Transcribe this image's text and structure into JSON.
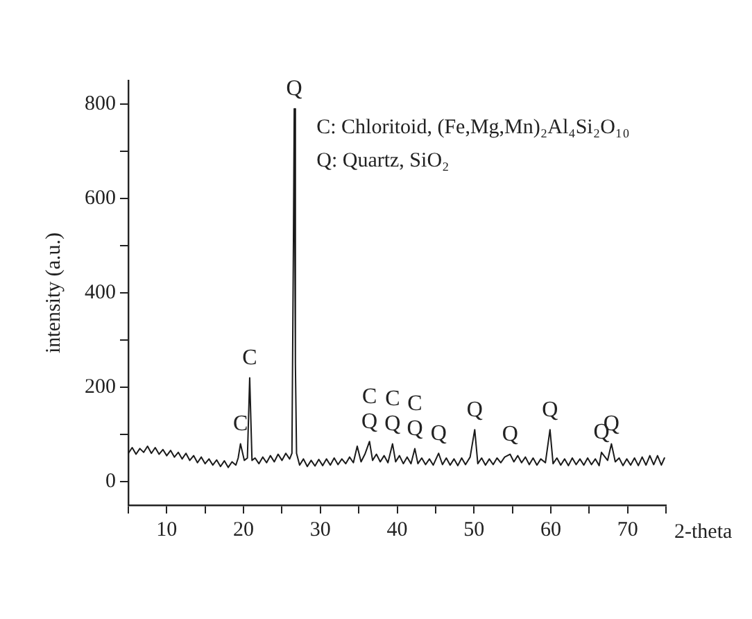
{
  "chart_data": {
    "type": "line",
    "xlabel": "2-theta",
    "ylabel": "intensity (a.u.)",
    "xlim": [
      5,
      75
    ],
    "ylim": [
      -50,
      850
    ],
    "xticks": [
      {
        "value": 5,
        "label": null
      },
      10,
      {
        "value": 15,
        "label": null
      },
      20,
      {
        "value": 25,
        "label": null
      },
      30,
      {
        "value": 35,
        "label": null
      },
      40,
      {
        "value": 45,
        "label": null
      },
      50,
      {
        "value": 55,
        "label": null
      },
      60,
      {
        "value": 65,
        "label": null
      },
      70,
      {
        "value": 75,
        "label": null
      }
    ],
    "yticks": [
      0,
      {
        "value": 100,
        "label": null
      },
      200,
      {
        "value": 300,
        "label": null
      },
      400,
      {
        "value": 500,
        "label": null
      },
      600,
      {
        "value": 700,
        "label": null
      },
      800
    ],
    "grid": false,
    "legend": false,
    "marker": "none",
    "line_style": "solid",
    "series": [
      {
        "color": "#1a1a1a",
        "x": [
          5,
          5.5,
          6,
          6.5,
          7,
          7.5,
          8,
          8.5,
          9,
          9.5,
          10,
          10.5,
          11,
          11.5,
          12,
          12.5,
          13,
          13.5,
          14,
          14.5,
          15,
          15.5,
          16,
          16.5,
          17,
          17.5,
          18,
          18.5,
          19,
          19.3,
          19.6,
          20.1,
          20.5,
          20.8,
          21.1,
          21.5,
          22,
          22.5,
          23,
          23.5,
          24,
          24.5,
          25,
          25.5,
          26,
          26.3,
          26.5,
          26.6,
          26.75,
          26.9,
          27.3,
          27.8,
          28.3,
          28.8,
          29.3,
          29.8,
          30.3,
          30.8,
          31.3,
          31.8,
          32.3,
          32.8,
          33.3,
          33.8,
          34.3,
          34.8,
          35.3,
          35.8,
          36.4,
          36.8,
          37.3,
          37.8,
          38.3,
          38.8,
          39.4,
          39.8,
          40.3,
          40.8,
          41.3,
          41.8,
          42.3,
          42.7,
          43.2,
          43.7,
          44.2,
          44.7,
          45.4,
          45.9,
          46.4,
          46.9,
          47.4,
          47.9,
          48.4,
          48.9,
          49.5,
          50.1,
          50.5,
          51,
          51.5,
          52,
          52.5,
          53,
          53.5,
          54,
          54.7,
          55.2,
          55.7,
          56.2,
          56.7,
          57.2,
          57.7,
          58.2,
          58.7,
          59.3,
          59.9,
          60.3,
          60.8,
          61.3,
          61.8,
          62.3,
          62.8,
          63.3,
          63.8,
          64.3,
          64.8,
          65.3,
          65.8,
          66.3,
          66.6,
          67.4,
          67.9,
          68.4,
          68.9,
          69.4,
          69.9,
          70.4,
          70.9,
          71.4,
          71.9,
          72.4,
          72.9,
          73.4,
          73.9,
          74.4,
          74.8
        ],
        "values": [
          60,
          72,
          58,
          70,
          62,
          75,
          60,
          72,
          58,
          68,
          55,
          66,
          52,
          62,
          48,
          60,
          45,
          55,
          40,
          52,
          38,
          48,
          35,
          46,
          32,
          44,
          30,
          42,
          35,
          50,
          80,
          45,
          50,
          220,
          45,
          50,
          38,
          52,
          40,
          55,
          42,
          58,
          45,
          60,
          48,
          60,
          520,
          790,
          250,
          60,
          35,
          48,
          32,
          45,
          33,
          47,
          34,
          48,
          35,
          50,
          36,
          48,
          38,
          52,
          40,
          75,
          42,
          58,
          85,
          45,
          58,
          42,
          55,
          40,
          80,
          42,
          55,
          38,
          52,
          38,
          70,
          38,
          50,
          36,
          48,
          35,
          60,
          36,
          50,
          35,
          48,
          34,
          50,
          36,
          52,
          110,
          38,
          50,
          35,
          48,
          36,
          50,
          40,
          52,
          58,
          42,
          55,
          40,
          52,
          36,
          50,
          35,
          48,
          40,
          110,
          38,
          50,
          35,
          48,
          34,
          50,
          36,
          48,
          35,
          50,
          36,
          48,
          34,
          62,
          45,
          80,
          42,
          50,
          34,
          48,
          35,
          50,
          34,
          52,
          35,
          55,
          36,
          55,
          35,
          50
        ]
      }
    ],
    "annotations": [
      "C: Chloritoid, (Fe,Mg,Mn)₂Al₄Si₂O₁₀",
      "Q: Quartz, SiO₂",
      {
        "text": "C",
        "x": 19.6,
        "y": 80
      },
      {
        "text": "C",
        "x": 20.8,
        "y": 220
      },
      {
        "text": "Q",
        "x": 26.6,
        "y": 790
      },
      {
        "text": "Q",
        "x": 36.4,
        "y": 85
      },
      {
        "text": "C",
        "x": 36.4,
        "y": 85
      },
      {
        "text": "Q",
        "x": 39.4,
        "y": 80
      },
      {
        "text": "C",
        "x": 39.4,
        "y": 80
      },
      {
        "text": "Q",
        "x": 42.3,
        "y": 70
      },
      {
        "text": "C",
        "x": 42.3,
        "y": 70
      },
      {
        "text": "Q",
        "x": 45.4,
        "y": 60
      },
      {
        "text": "Q",
        "x": 50.1,
        "y": 110
      },
      {
        "text": "Q",
        "x": 54.7,
        "y": 58
      },
      {
        "text": "Q",
        "x": 59.9,
        "y": 110
      },
      {
        "text": "Q",
        "x": 66.6,
        "y": 62
      },
      {
        "text": "Q",
        "x": 67.9,
        "y": 80
      }
    ]
  }
}
